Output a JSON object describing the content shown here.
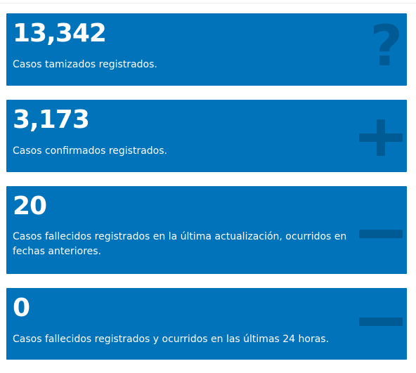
{
  "colors": {
    "card_background": "#0073bb",
    "card_icon": "#005a94",
    "text": "#ffffff"
  },
  "cards": [
    {
      "value": "13,342",
      "label": "Casos tamizados registrados.",
      "icon": "question-mark-icon"
    },
    {
      "value": "3,173",
      "label": "Casos confirmados registrados.",
      "icon": "plus-icon"
    },
    {
      "value": "20",
      "label": "Casos fallecidos registrados en la última actualización, ocurridos en fechas anteriores.",
      "icon": "minus-icon"
    },
    {
      "value": "0",
      "label": "Casos fallecidos registrados y ocurridos en las últimas 24 horas.",
      "icon": "minus-icon"
    }
  ]
}
